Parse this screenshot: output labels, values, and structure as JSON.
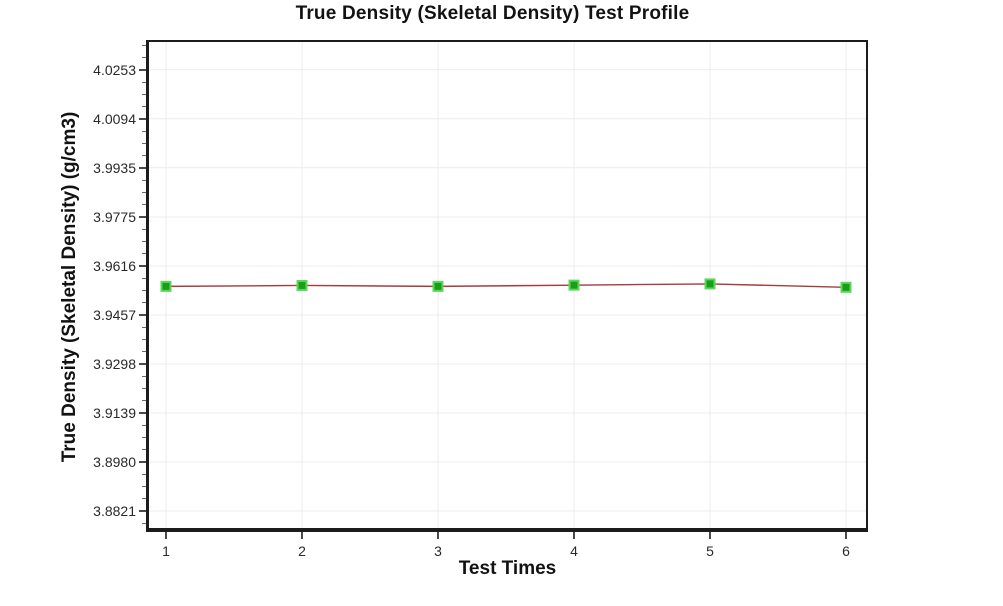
{
  "chart_data": {
    "type": "line",
    "title": "True Density (Skeletal Density) Test Profile",
    "xlabel": "Test Times",
    "ylabel": "True Density (Skeletal Density) (g/cm3)",
    "x": [
      1,
      2,
      3,
      4,
      5,
      6
    ],
    "series": [
      {
        "name": "True Density (Skeletal Density)",
        "values": [
          3.955,
          3.9553,
          3.955,
          3.9554,
          3.9558,
          3.9547
        ]
      }
    ],
    "x_ticks": [
      "1",
      "2",
      "3",
      "4",
      "5",
      "6"
    ],
    "y_ticks": [
      "4.0253",
      "4.0094",
      "3.9935",
      "3.9775",
      "3.9616",
      "3.9457",
      "3.9298",
      "3.9139",
      "3.8980",
      "3.8821"
    ],
    "y_tick_step": 0.0159,
    "xlim": [
      0.875,
      6.147
    ],
    "ylim": [
      3.8766,
      4.0343
    ],
    "grid": true,
    "legend": false,
    "line_color": "#a63b3b",
    "marker_color": "#17a017",
    "marker_edge_color": "#5cd65c",
    "marker_shape": "square",
    "grid_color": "#ececec"
  }
}
